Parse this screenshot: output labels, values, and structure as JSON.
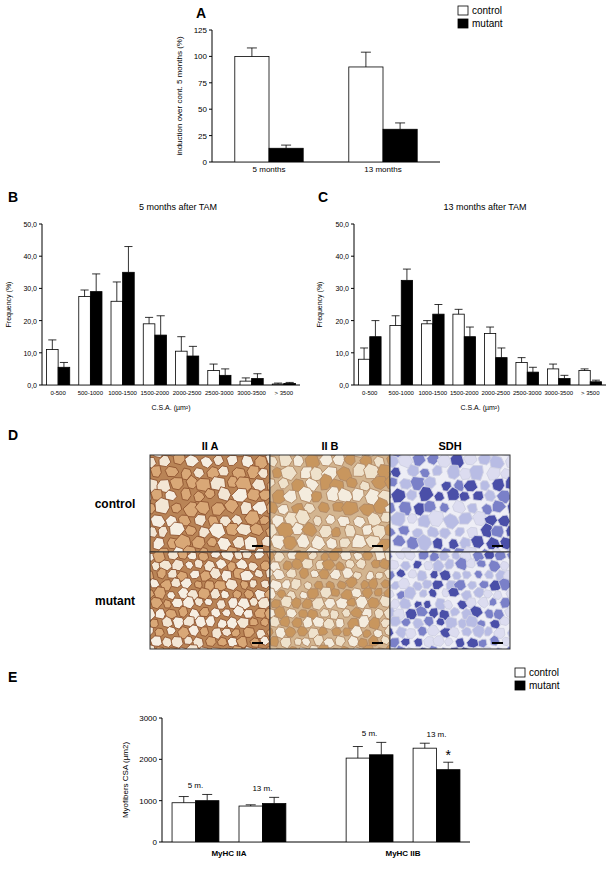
{
  "chart_data": [
    {
      "type": "bar",
      "panel": "A",
      "y_label": "induction over cont. 5 months (%)",
      "categories": [
        "5 months",
        "13 months"
      ],
      "series": [
        {
          "name": "control",
          "color": "#ffffff",
          "values": [
            100,
            90
          ],
          "errors": [
            8,
            14
          ]
        },
        {
          "name": "mutant",
          "color": "#000000",
          "values": [
            13,
            31
          ],
          "errors": [
            3,
            6
          ]
        }
      ],
      "ylim": [
        0,
        125
      ],
      "yticks": [
        0,
        25,
        50,
        75,
        100,
        125
      ],
      "legend": "top-right"
    },
    {
      "type": "bar",
      "panel": "B",
      "title": "5 months after TAM",
      "y_label": "Frequency (%)",
      "x_label": "C.S.A. (µm²)",
      "categories": [
        "0-500",
        "500-1000",
        "1000-1500",
        "1500-2000",
        "2000-2500",
        "2500-3000",
        "3000-3500",
        "> 3500"
      ],
      "series": [
        {
          "name": "control",
          "color": "#ffffff",
          "values": [
            11,
            27.5,
            26,
            19,
            10.5,
            4.5,
            1.2,
            0.3
          ],
          "errors": [
            3,
            2,
            6,
            2,
            4.5,
            2,
            1,
            0.3
          ]
        },
        {
          "name": "mutant",
          "color": "#000000",
          "values": [
            5.5,
            29,
            35,
            15.5,
            9,
            3,
            2,
            0.5
          ],
          "errors": [
            1.5,
            5.5,
            8,
            6,
            3,
            2,
            1.5,
            0.3
          ]
        }
      ],
      "ylim": [
        0,
        50
      ],
      "yticks": [
        {
          "value": 0,
          "label": "0,0"
        },
        {
          "value": 10,
          "label": "10,0"
        },
        {
          "value": 20,
          "label": "20,0"
        },
        {
          "value": 30,
          "label": "30,0"
        },
        {
          "value": 40,
          "label": "40,0"
        },
        {
          "value": 50,
          "label": "50,0"
        }
      ]
    },
    {
      "type": "bar",
      "panel": "C",
      "title": "13 months after TAM",
      "y_label": "Frequency (%)",
      "x_label": "C.S.A. (µm²)",
      "categories": [
        "0-500",
        "500-1000",
        "1000-1500",
        "1500-2000",
        "2000-2500",
        "2500-3000",
        "3000-3500",
        "> 3500"
      ],
      "series": [
        {
          "name": "control",
          "color": "#ffffff",
          "values": [
            8,
            18.5,
            19,
            22,
            16,
            7,
            5,
            4.5
          ],
          "errors": [
            3.5,
            3,
            1,
            1.5,
            2,
            1.5,
            1.5,
            0.5
          ]
        },
        {
          "name": "mutant",
          "color": "#000000",
          "values": [
            15,
            32.5,
            22,
            15,
            8.5,
            4,
            2,
            1
          ],
          "errors": [
            5,
            3.5,
            3,
            3,
            3,
            1.5,
            1,
            0.5
          ]
        }
      ],
      "ylim": [
        0,
        50
      ],
      "yticks": [
        {
          "value": 0,
          "label": "0,0"
        },
        {
          "value": 10,
          "label": "10,0"
        },
        {
          "value": 20,
          "label": "20,0"
        },
        {
          "value": 30,
          "label": "30,0"
        },
        {
          "value": 40,
          "label": "40,0"
        },
        {
          "value": 50,
          "label": "50,0"
        }
      ]
    },
    {
      "type": "bar",
      "panel": "E",
      "y_label": "Myofibers CSA (µm2)",
      "categories": [
        "5 m.",
        "13 m.",
        "5 m.",
        "13 m."
      ],
      "x_groups": [
        "MyHC IIA",
        "MyHC IIB"
      ],
      "series": [
        {
          "name": "control",
          "color": "#ffffff",
          "values": [
            950,
            870,
            2030,
            2270
          ],
          "errors": [
            150,
            30,
            280,
            120
          ]
        },
        {
          "name": "mutant",
          "color": "#000000",
          "values": [
            1000,
            930,
            2110,
            1750
          ],
          "errors": [
            150,
            150,
            300,
            180
          ]
        }
      ],
      "annotations": [
        {
          "text": "*",
          "series": 1,
          "index": 3
        }
      ],
      "ylim": [
        0,
        3000
      ],
      "yticks": [
        0,
        1000,
        2000,
        3000
      ],
      "legend": "top-right"
    }
  ],
  "panel_d": {
    "panel": "D",
    "columns": [
      "II A",
      "II B",
      "SDH"
    ],
    "rows": [
      "control",
      "mutant"
    ]
  }
}
